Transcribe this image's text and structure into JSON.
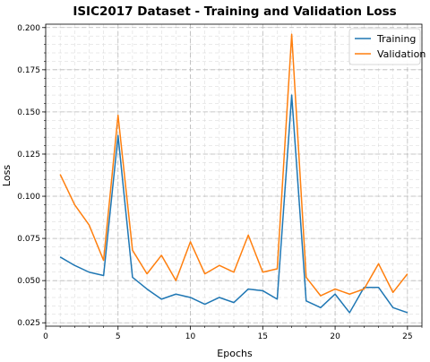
{
  "chart_data": {
    "type": "line",
    "title": "ISIC2017 Dataset - Training and Validation Loss",
    "xlabel": "Epochs",
    "ylabel": "Loss",
    "xlim": [
      0,
      26
    ],
    "ylim": [
      0.023,
      0.202
    ],
    "xticks": [
      0,
      5,
      10,
      15,
      20,
      25
    ],
    "yticks": [
      0.025,
      0.05,
      0.075,
      0.1,
      0.125,
      0.15,
      0.175,
      0.2
    ],
    "grid": true,
    "legend_position": "top-right",
    "x": [
      1,
      2,
      3,
      4,
      5,
      6,
      7,
      8,
      9,
      10,
      11,
      12,
      13,
      14,
      15,
      16,
      17,
      18,
      19,
      20,
      21,
      22,
      23,
      24,
      25
    ],
    "series": [
      {
        "name": "Training",
        "color": "#1f77b4",
        "values": [
          0.064,
          0.059,
          0.055,
          0.053,
          0.136,
          0.052,
          0.045,
          0.039,
          0.042,
          0.04,
          0.036,
          0.04,
          0.037,
          0.045,
          0.044,
          0.039,
          0.16,
          0.038,
          0.034,
          0.042,
          0.031,
          0.046,
          0.046,
          0.034,
          0.031
        ]
      },
      {
        "name": "Validation",
        "color": "#ff7f0e",
        "values": [
          0.113,
          0.095,
          0.083,
          0.062,
          0.148,
          0.068,
          0.054,
          0.065,
          0.05,
          0.073,
          0.054,
          0.059,
          0.055,
          0.077,
          0.055,
          0.057,
          0.196,
          0.052,
          0.041,
          0.045,
          0.042,
          0.045,
          0.06,
          0.043,
          0.054
        ]
      }
    ]
  }
}
